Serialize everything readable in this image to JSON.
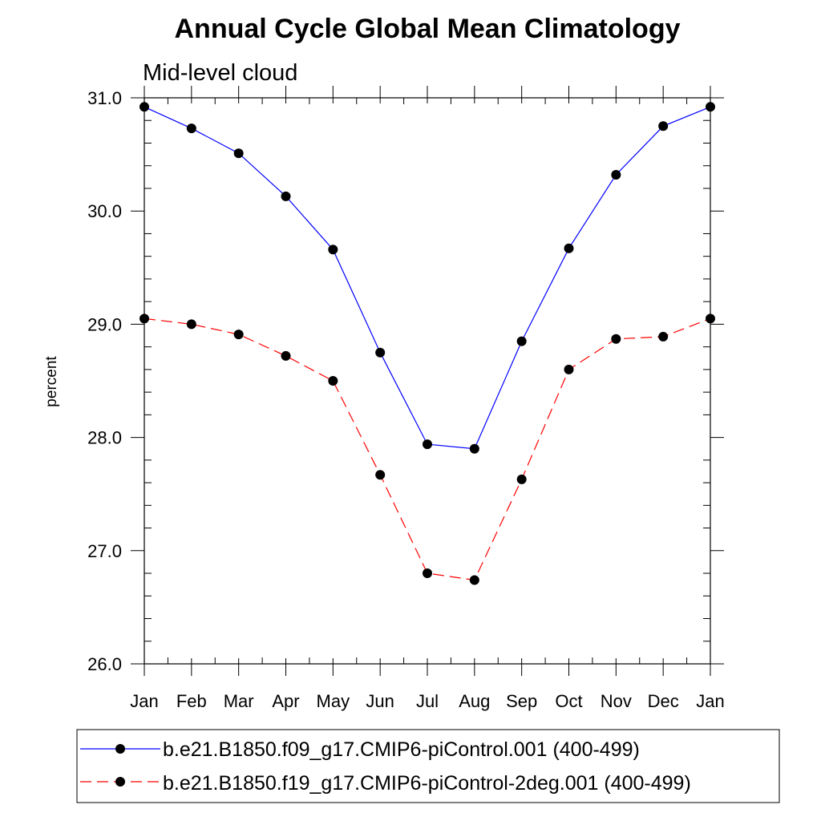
{
  "chart_data": {
    "type": "line",
    "title": "Annual Cycle Global Mean Climatology",
    "subtitle": "Mid-level cloud",
    "xlabel": "",
    "ylabel": "percent",
    "categories": [
      "Jan",
      "Feb",
      "Mar",
      "Apr",
      "May",
      "Jun",
      "Jul",
      "Aug",
      "Sep",
      "Oct",
      "Nov",
      "Dec",
      "Jan"
    ],
    "ylim": [
      26.0,
      31.0
    ],
    "yticks": [
      26.0,
      27.0,
      28.0,
      29.0,
      30.0,
      31.0
    ],
    "ytick_labels": [
      "26.0",
      "27.0",
      "28.0",
      "29.0",
      "30.0",
      "31.0"
    ],
    "legend_position": "bottom",
    "series": [
      {
        "name": "b.e21.B1850.f09_g17.CMIP6-piControl.001 (400-499)",
        "color": "#0000ff",
        "dash": "solid",
        "values": [
          30.92,
          30.73,
          30.51,
          30.13,
          29.66,
          28.75,
          27.94,
          27.9,
          28.85,
          29.67,
          30.32,
          30.75,
          30.92
        ]
      },
      {
        "name": "b.e21.B1850.f19_g17.CMIP6-piControl-2deg.001 (400-499)",
        "color": "#ff0000",
        "dash": "dashed",
        "values": [
          29.05,
          29.0,
          28.91,
          28.72,
          28.5,
          27.67,
          26.8,
          26.74,
          27.63,
          28.6,
          28.87,
          28.89,
          29.05
        ]
      }
    ]
  }
}
